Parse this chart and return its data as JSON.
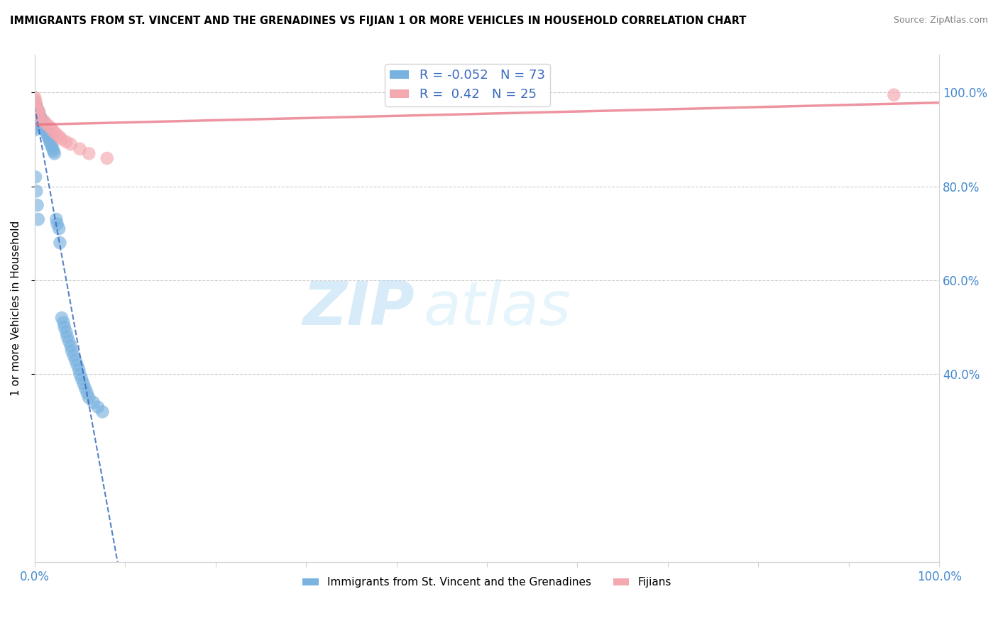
{
  "title": "IMMIGRANTS FROM ST. VINCENT AND THE GRENADINES VS FIJIAN 1 OR MORE VEHICLES IN HOUSEHOLD CORRELATION CHART",
  "source": "Source: ZipAtlas.com",
  "ylabel": "1 or more Vehicles in Household",
  "legend_label1": "Immigrants from St. Vincent and the Grenadines",
  "legend_label2": "Fijians",
  "R1": -0.052,
  "N1": 73,
  "R2": 0.42,
  "N2": 25,
  "color1": "#7ab3e0",
  "color2": "#f4a8b0",
  "trendline1_color": "#3a6bbf",
  "trendline2_color": "#e87080",
  "background_color": "#ffffff",
  "watermark_zip": "ZIP",
  "watermark_atlas": "atlas",
  "blue_scatter_x": [
    0.0,
    0.0,
    0.0,
    0.0,
    0.0,
    0.0,
    0.0,
    0.0,
    0.001,
    0.001,
    0.001,
    0.001,
    0.001,
    0.001,
    0.002,
    0.002,
    0.002,
    0.002,
    0.003,
    0.003,
    0.003,
    0.004,
    0.004,
    0.005,
    0.005,
    0.006,
    0.006,
    0.007,
    0.007,
    0.008,
    0.009,
    0.01,
    0.011,
    0.012,
    0.013,
    0.014,
    0.015,
    0.016,
    0.017,
    0.018,
    0.019,
    0.02,
    0.021,
    0.022,
    0.024,
    0.025,
    0.027,
    0.028,
    0.03,
    0.032,
    0.033,
    0.035,
    0.036,
    0.038,
    0.04,
    0.041,
    0.043,
    0.045,
    0.047,
    0.049,
    0.05,
    0.052,
    0.054,
    0.056,
    0.058,
    0.06,
    0.065,
    0.07,
    0.075,
    0.001,
    0.002,
    0.003,
    0.004
  ],
  "blue_scatter_y": [
    0.98,
    0.97,
    0.96,
    0.95,
    0.945,
    0.94,
    0.93,
    0.92,
    0.975,
    0.965,
    0.955,
    0.945,
    0.935,
    0.925,
    0.97,
    0.96,
    0.95,
    0.94,
    0.965,
    0.955,
    0.945,
    0.96,
    0.95,
    0.955,
    0.945,
    0.95,
    0.94,
    0.945,
    0.935,
    0.94,
    0.935,
    0.93,
    0.925,
    0.92,
    0.915,
    0.91,
    0.905,
    0.9,
    0.895,
    0.89,
    0.885,
    0.88,
    0.875,
    0.87,
    0.73,
    0.72,
    0.71,
    0.68,
    0.52,
    0.51,
    0.5,
    0.49,
    0.48,
    0.47,
    0.46,
    0.45,
    0.44,
    0.43,
    0.42,
    0.41,
    0.4,
    0.39,
    0.38,
    0.37,
    0.36,
    0.35,
    0.34,
    0.33,
    0.32,
    0.82,
    0.79,
    0.76,
    0.73
  ],
  "pink_scatter_x": [
    0.0,
    0.0,
    0.001,
    0.001,
    0.002,
    0.002,
    0.003,
    0.004,
    0.005,
    0.005,
    0.01,
    0.012,
    0.015,
    0.018,
    0.02,
    0.022,
    0.025,
    0.028,
    0.03,
    0.035,
    0.04,
    0.05,
    0.06,
    0.08,
    0.95
  ],
  "pink_scatter_y": [
    0.99,
    0.975,
    0.985,
    0.97,
    0.975,
    0.965,
    0.96,
    0.955,
    0.96,
    0.95,
    0.94,
    0.935,
    0.93,
    0.925,
    0.92,
    0.915,
    0.91,
    0.905,
    0.9,
    0.895,
    0.89,
    0.88,
    0.87,
    0.86,
    0.995
  ],
  "y_ticks": [
    0.4,
    0.6,
    0.8,
    1.0
  ],
  "y_tick_labels": [
    "40.0%",
    "60.0%",
    "80.0%",
    "100.0%"
  ]
}
